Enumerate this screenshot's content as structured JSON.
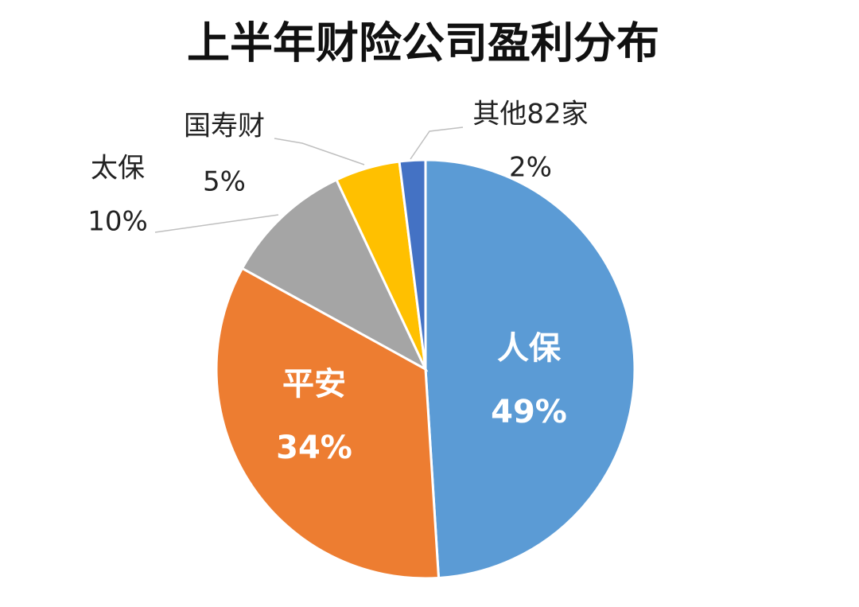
{
  "chart_data": {
    "type": "pie",
    "title": "上半年财险公司盈利分布",
    "categories": [
      "人保",
      "平安",
      "太保",
      "国寿财",
      "其他82家"
    ],
    "values": [
      49,
      34,
      10,
      5,
      2
    ],
    "value_labels": [
      "49%",
      "34%",
      "10%",
      "5%",
      "2%"
    ],
    "colors": [
      "#5b9bd5",
      "#ed7d31",
      "#a5a5a5",
      "#ffc000",
      "#4472c4"
    ]
  }
}
